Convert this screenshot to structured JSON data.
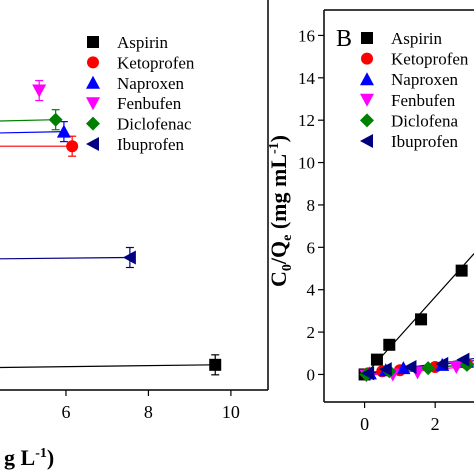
{
  "chart_data": [
    {
      "panel": "",
      "type": "scatter",
      "xlabel_fragment": "g L",
      "xlabel_exponent": "-1",
      "xlabel_close": ")",
      "x_ticks": [
        "6",
        "8",
        "10"
      ],
      "x_range_visible": [
        4.4,
        10.9
      ],
      "legend": [
        {
          "name": "Aspirin",
          "marker": "square",
          "color": "#000000"
        },
        {
          "name": "Ketoprofen",
          "marker": "circle",
          "color": "#ff0000"
        },
        {
          "name": "Naproxen",
          "marker": "triangle-up",
          "color": "#0000ff"
        },
        {
          "name": "Fenbufen",
          "marker": "triangle-down",
          "color": "#ff00ff"
        },
        {
          "name": "Diclofenac",
          "marker": "diamond",
          "color": "#008000"
        },
        {
          "name": "Ibuprofen",
          "marker": "triangle-left",
          "color": "#000080"
        }
      ],
      "series": [
        {
          "name": "Aspirin",
          "points": [
            {
              "x": 9.62,
              "y": 0.95
            }
          ],
          "fit": [
            [
              4.4,
              0.85
            ],
            [
              9.62,
              0.95
            ]
          ]
        },
        {
          "name": "Ibuprofen",
          "points": [
            {
              "x": 7.55,
              "y": 5.0
            }
          ],
          "fit": [
            [
              4.4,
              4.95
            ],
            [
              7.55,
              5.0
            ]
          ]
        },
        {
          "name": "Ketoprofen",
          "points": [
            {
              "x": 6.15,
              "y": 9.2
            }
          ],
          "fit": [
            [
              4.4,
              9.2
            ],
            [
              6.15,
              9.2
            ]
          ]
        },
        {
          "name": "Naproxen",
          "points": [
            {
              "x": 5.95,
              "y": 9.75
            }
          ],
          "fit": [
            [
              4.4,
              9.7
            ],
            [
              5.95,
              9.75
            ]
          ]
        },
        {
          "name": "Diclofenac",
          "points": [
            {
              "x": 5.75,
              "y": 10.2
            }
          ],
          "fit": [
            [
              4.4,
              10.15
            ],
            [
              5.75,
              10.2
            ]
          ]
        },
        {
          "name": "Fenbufen",
          "points": [
            {
              "x": 5.35,
              "y": 11.3
            }
          ],
          "fit": []
        }
      ]
    },
    {
      "panel": "B",
      "type": "scatter",
      "ylabel": "C0/Qe (mg mL-1)",
      "ylabel_main": "C",
      "ylabel_sub0": "0",
      "ylabel_mid": "/Q",
      "ylabel_sube": "e",
      "ylabel_unit": " (mg mL",
      "ylabel_exp": "-1",
      "ylabel_close": ")",
      "y_ticks": [
        "0",
        "2",
        "4",
        "6",
        "8",
        "10",
        "12",
        "14",
        "16"
      ],
      "x_ticks": [
        "0",
        "2"
      ],
      "ylim": [
        -1.3,
        17.2
      ],
      "x_range_visible": [
        -1.15,
        3.1
      ],
      "legend": [
        {
          "name": "Aspirin",
          "marker": "square",
          "color": "#000000"
        },
        {
          "name": "Ketoprofen",
          "marker": "circle",
          "color": "#ff0000"
        },
        {
          "name": "Naproxen",
          "marker": "triangle-up",
          "color": "#0000ff"
        },
        {
          "name": "Fenbufen",
          "marker": "triangle-down",
          "color": "#ff00ff"
        },
        {
          "name": "Diclofenac",
          "marker": "diamond",
          "color": "#008000"
        },
        {
          "name": "Ibuprofen",
          "marker": "triangle-left",
          "color": "#000080"
        }
      ],
      "legend_display": [
        "Aspirin",
        "Ketoprofen",
        "Naproxen",
        "Fenbufen",
        "Diclofena",
        "Ibuprofen"
      ],
      "series": [
        {
          "name": "Aspirin",
          "points": [
            {
              "x": 0.0,
              "y": 0.0
            },
            {
              "x": 0.35,
              "y": 0.7
            },
            {
              "x": 0.7,
              "y": 1.4
            },
            {
              "x": 1.6,
              "y": 2.6
            },
            {
              "x": 2.75,
              "y": 4.9
            }
          ],
          "fit": [
            [
              0.0,
              -0.05
            ],
            [
              3.1,
              5.7
            ]
          ]
        },
        {
          "name": "Ketoprofen",
          "points": [
            {
              "x": 0.1,
              "y": 0.05
            },
            {
              "x": 0.5,
              "y": 0.15
            },
            {
              "x": 1.0,
              "y": 0.2
            },
            {
              "x": 2.0,
              "y": 0.35
            },
            {
              "x": 2.9,
              "y": 0.5
            }
          ],
          "fit": [
            [
              0.0,
              0.05
            ],
            [
              3.1,
              0.5
            ]
          ]
        },
        {
          "name": "Naproxen",
          "points": [
            {
              "x": 0.15,
              "y": 0.05
            },
            {
              "x": 0.6,
              "y": 0.2
            },
            {
              "x": 1.1,
              "y": 0.3
            },
            {
              "x": 2.2,
              "y": 0.45
            },
            {
              "x": 2.9,
              "y": 0.6
            }
          ],
          "fit": [
            [
              0.0,
              0.05
            ],
            [
              3.1,
              0.65
            ]
          ]
        },
        {
          "name": "Fenbufen",
          "points": [
            {
              "x": 0.05,
              "y": -0.05
            },
            {
              "x": 0.8,
              "y": 0.0
            },
            {
              "x": 1.5,
              "y": 0.1
            },
            {
              "x": 2.6,
              "y": 0.35
            }
          ],
          "fit": [
            [
              0.0,
              -0.05
            ],
            [
              3.1,
              0.4
            ]
          ]
        },
        {
          "name": "Diclofenac",
          "points": [
            {
              "x": 0.05,
              "y": 0.0
            },
            {
              "x": 0.7,
              "y": 0.15
            },
            {
              "x": 1.8,
              "y": 0.3
            },
            {
              "x": 2.9,
              "y": 0.45
            }
          ],
          "fit": [
            [
              0.0,
              0.0
            ],
            [
              3.1,
              0.5
            ]
          ]
        },
        {
          "name": "Ibuprofen",
          "points": [
            {
              "x": 0.1,
              "y": 0.05
            },
            {
              "x": 0.6,
              "y": 0.25
            },
            {
              "x": 1.3,
              "y": 0.35
            },
            {
              "x": 2.2,
              "y": 0.5
            },
            {
              "x": 2.8,
              "y": 0.7
            }
          ],
          "fit": [
            [
              0.0,
              0.05
            ],
            [
              3.1,
              0.75
            ]
          ]
        }
      ]
    }
  ]
}
